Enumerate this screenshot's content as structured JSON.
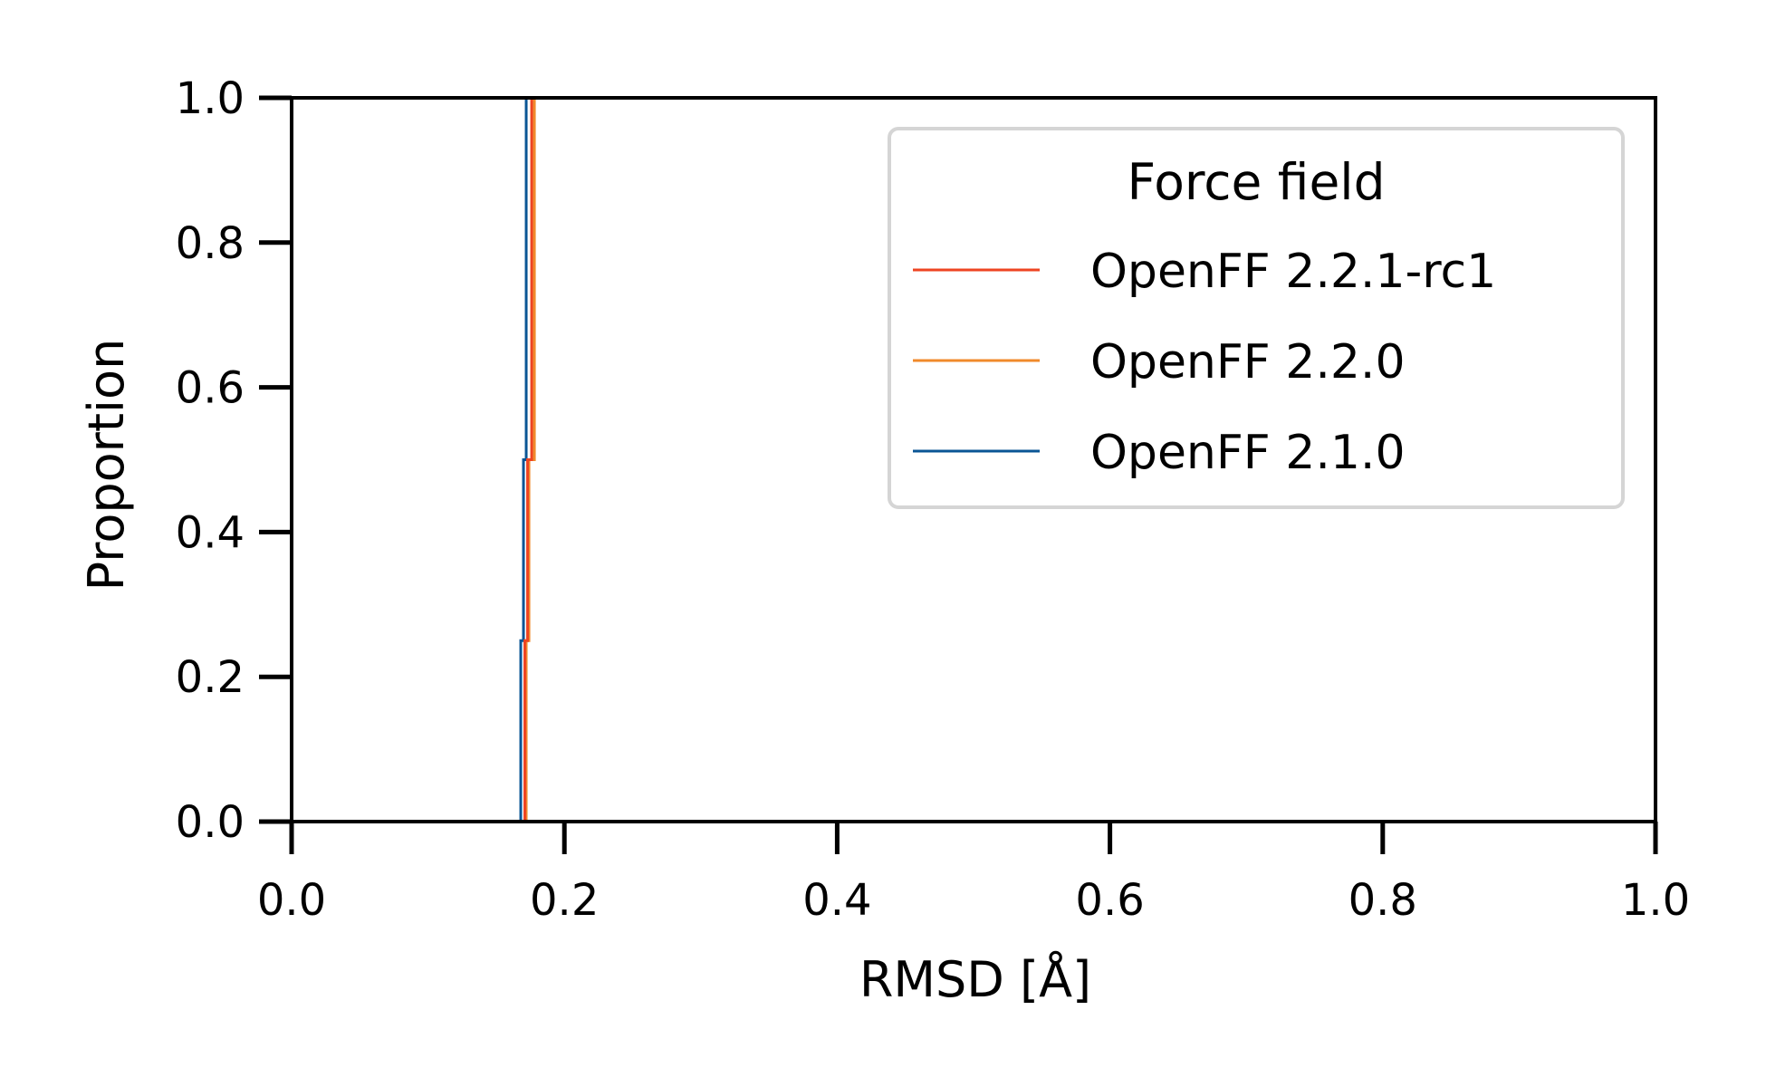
{
  "chart_data": {
    "type": "line",
    "subtype": "ecdf-step",
    "xlabel": "RMSD [Å]",
    "ylabel": "Proportion",
    "xlim": [
      0.0,
      1.0
    ],
    "ylim": [
      0.0,
      1.0
    ],
    "x_ticks": [
      0.0,
      0.2,
      0.4,
      0.6,
      0.8,
      1.0
    ],
    "x_tick_labels": [
      "0.0",
      "0.2",
      "0.4",
      "0.6",
      "0.8",
      "1.0"
    ],
    "y_ticks": [
      0.0,
      0.2,
      0.4,
      0.6,
      0.8,
      1.0
    ],
    "y_tick_labels": [
      "0.0",
      "0.2",
      "0.4",
      "0.6",
      "0.8",
      "1.0"
    ],
    "grid": false,
    "legend": {
      "title": "Force field",
      "placement": "top-right"
    },
    "series": [
      {
        "name": "OpenFF 2.2.1-rc1",
        "color": "#ee4422",
        "x": [
          0.17,
          0.171,
          0.173,
          0.176,
          0.176
        ],
        "y": [
          0.0,
          0.25,
          0.5,
          0.75,
          1.0
        ]
      },
      {
        "name": "OpenFF 2.2.0",
        "color": "#f08a2b",
        "x": [
          0.166,
          0.172,
          0.174,
          0.178,
          0.178
        ],
        "y": [
          0.0,
          0.25,
          0.5,
          0.75,
          1.0
        ]
      },
      {
        "name": "OpenFF 2.1.0",
        "color": "#0a5595",
        "x": [
          0.168,
          0.168,
          0.17,
          0.172,
          0.172
        ],
        "y": [
          0.0,
          0.25,
          0.5,
          0.75,
          1.0
        ]
      }
    ]
  }
}
